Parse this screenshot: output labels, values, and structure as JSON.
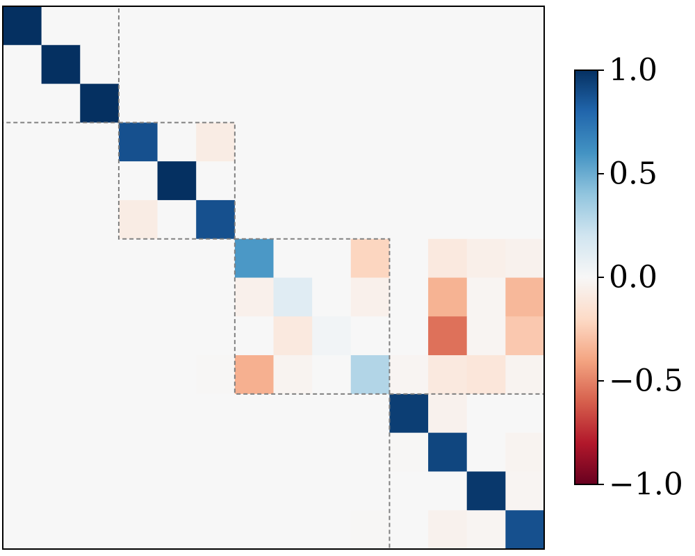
{
  "chart_data": {
    "type": "heatmap",
    "title": "",
    "xlabel": "",
    "ylabel": "",
    "rows": 14,
    "cols": 14,
    "vmin": -1.0,
    "vmax": 1.0,
    "colormap": "RdBu",
    "axis_ticks": false,
    "blocks": [
      {
        "start": 0,
        "end": 3
      },
      {
        "start": 3,
        "end": 6
      },
      {
        "start": 6,
        "end": 10
      },
      {
        "start": 10,
        "end": 14
      }
    ],
    "block_outline": {
      "color": "#808080",
      "style": "dashed"
    },
    "values": [
      [
        1.0,
        0.0,
        0.0,
        0.0,
        0.0,
        0.0,
        0.0,
        0.0,
        0.0,
        0.0,
        0.0,
        0.0,
        0.0,
        0.0
      ],
      [
        0.0,
        1.0,
        0.0,
        0.0,
        0.0,
        0.0,
        0.0,
        0.0,
        0.0,
        0.0,
        0.0,
        0.0,
        0.0,
        0.0
      ],
      [
        0.0,
        0.0,
        1.0,
        0.0,
        0.0,
        0.0,
        0.0,
        0.0,
        0.0,
        0.0,
        0.0,
        0.0,
        0.0,
        0.0
      ],
      [
        0.0,
        0.0,
        0.0,
        0.88,
        0.0,
        -0.08,
        0.0,
        0.0,
        0.0,
        0.0,
        0.0,
        0.0,
        0.0,
        0.0
      ],
      [
        0.0,
        0.0,
        0.0,
        0.0,
        1.0,
        0.0,
        0.0,
        0.0,
        0.0,
        0.0,
        0.0,
        0.0,
        0.0,
        0.0
      ],
      [
        0.0,
        0.0,
        0.0,
        -0.08,
        0.0,
        0.88,
        0.0,
        0.0,
        0.0,
        0.0,
        0.0,
        0.0,
        0.0,
        0.0
      ],
      [
        0.0,
        0.0,
        0.0,
        0.0,
        0.0,
        0.0,
        0.58,
        0.0,
        0.0,
        -0.22,
        0.0,
        -0.1,
        -0.06,
        -0.04
      ],
      [
        0.0,
        0.0,
        0.0,
        0.0,
        0.0,
        0.0,
        -0.05,
        0.12,
        0.0,
        -0.05,
        0.0,
        -0.35,
        -0.02,
        -0.33
      ],
      [
        0.0,
        0.0,
        0.0,
        0.0,
        0.0,
        0.0,
        0.0,
        -0.1,
        0.03,
        0.0,
        0.0,
        -0.55,
        -0.02,
        -0.27
      ],
      [
        0.0,
        0.0,
        0.0,
        0.0,
        0.0,
        -0.01,
        -0.36,
        -0.03,
        0.0,
        0.3,
        -0.02,
        -0.1,
        -0.12,
        -0.03
      ],
      [
        0.0,
        0.0,
        0.0,
        0.0,
        0.0,
        0.0,
        0.0,
        0.0,
        0.0,
        0.0,
        0.95,
        -0.04,
        0.0,
        0.0
      ],
      [
        0.0,
        0.0,
        0.0,
        0.0,
        0.0,
        0.0,
        0.0,
        0.0,
        0.0,
        0.0,
        -0.01,
        0.92,
        0.0,
        -0.03
      ],
      [
        0.0,
        0.0,
        0.0,
        0.0,
        0.0,
        0.0,
        0.0,
        0.0,
        0.0,
        0.0,
        0.0,
        0.0,
        0.97,
        -0.02
      ],
      [
        0.0,
        0.0,
        0.0,
        0.0,
        0.0,
        0.0,
        0.0,
        0.0,
        0.0,
        -0.01,
        0.0,
        -0.04,
        -0.02,
        0.88
      ]
    ],
    "colorbar": {
      "ticks": [
        1.0,
        0.5,
        0.0,
        -0.5,
        -1.0
      ],
      "tick_labels": [
        "1.0",
        "0.5",
        "0.0",
        "−0.5",
        "−1.0"
      ]
    }
  }
}
